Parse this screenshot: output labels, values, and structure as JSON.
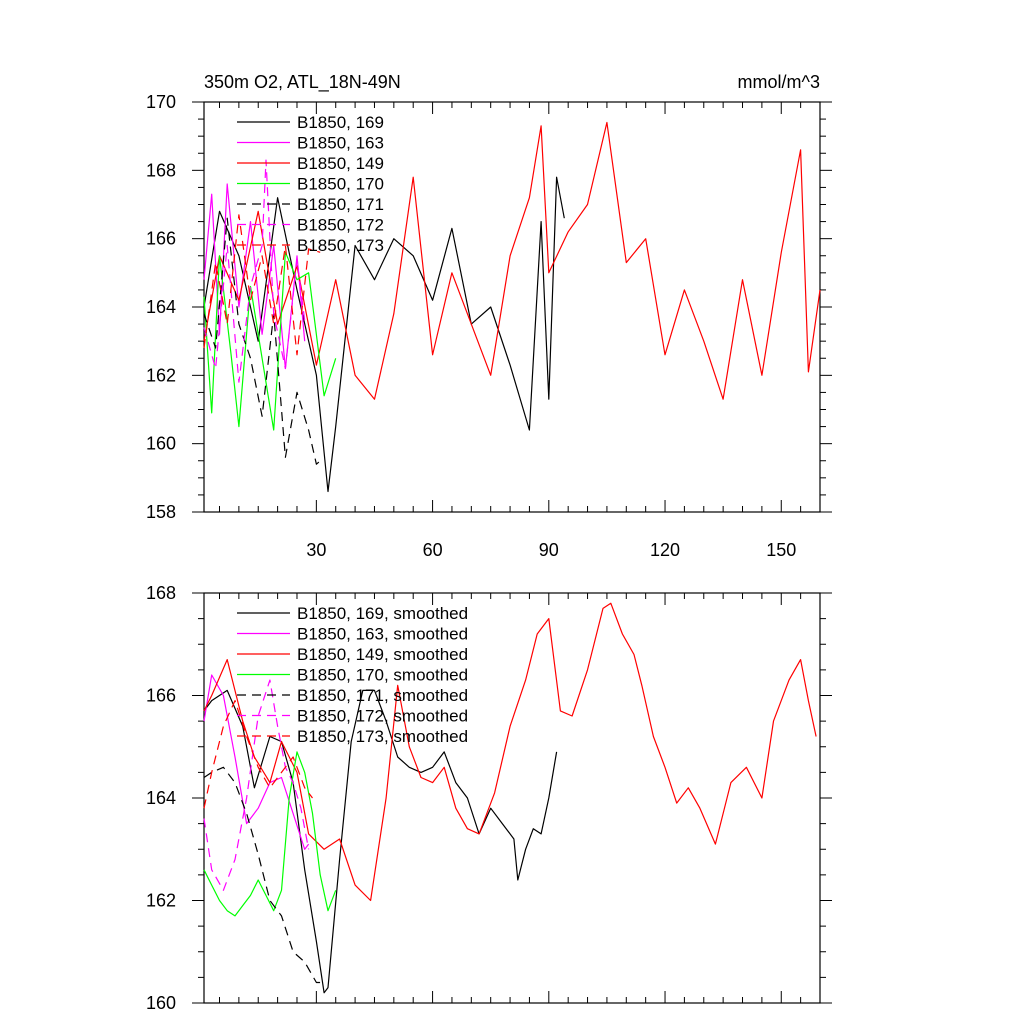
{
  "chart_data": [
    {
      "type": "line",
      "title": "350m O2, ATL_18N-49N",
      "right_title": "mmol/m^3",
      "xlabel": "",
      "ylabel": "",
      "xlim": [
        1,
        160
      ],
      "ylim": [
        158,
        170
      ],
      "xticks": [
        30,
        60,
        90,
        120,
        150
      ],
      "xtick_labels": [
        "30",
        "60",
        "90",
        "120",
        "150"
      ],
      "yticks": [
        158,
        160,
        162,
        164,
        166,
        168,
        170
      ],
      "ytick_labels": [
        "158",
        "160",
        "162",
        "164",
        "166",
        "168",
        "170"
      ],
      "grid": false,
      "legend_position": "top-left",
      "series": [
        {
          "name": "B1850, 169",
          "color": "#000000",
          "dash": "solid",
          "x": [
            1,
            5,
            10,
            15,
            20,
            25,
            30,
            33,
            35,
            40,
            45,
            50,
            55,
            60,
            65,
            70,
            75,
            80,
            85,
            88,
            90,
            92,
            94
          ],
          "y": [
            164.0,
            166.8,
            165.5,
            163.0,
            167.2,
            164.5,
            162.0,
            158.6,
            160.5,
            165.8,
            164.8,
            166.0,
            165.5,
            164.2,
            166.3,
            163.5,
            164.0,
            162.3,
            160.4,
            166.5,
            161.3,
            167.8,
            166.6
          ]
        },
        {
          "name": "B1850, 163",
          "color": "#ff00ff",
          "dash": "solid",
          "x": [
            1,
            3,
            5,
            7,
            10,
            13,
            16,
            19,
            22,
            25,
            27
          ],
          "y": [
            164.8,
            167.3,
            163.2,
            167.6,
            164.0,
            166.5,
            163.2,
            165.8,
            162.2,
            165.5,
            163.0
          ]
        },
        {
          "name": "B1850, 149",
          "color": "#ff0000",
          "dash": "solid",
          "x": [
            1,
            5,
            10,
            15,
            20,
            25,
            30,
            35,
            40,
            45,
            50,
            55,
            60,
            65,
            70,
            75,
            80,
            85,
            88,
            90,
            95,
            100,
            105,
            110,
            115,
            120,
            125,
            130,
            135,
            140,
            145,
            150,
            155,
            157,
            160
          ],
          "y": [
            163.0,
            165.5,
            164.2,
            166.8,
            163.5,
            165.2,
            162.3,
            164.8,
            162.0,
            161.3,
            163.8,
            167.8,
            162.6,
            165.0,
            163.5,
            162.0,
            165.5,
            167.2,
            169.3,
            165.0,
            166.2,
            167.0,
            169.4,
            165.3,
            166.0,
            162.6,
            164.5,
            163.0,
            161.3,
            164.8,
            162.0,
            165.6,
            168.6,
            162.1,
            164.5
          ]
        },
        {
          "name": "B1850, 170",
          "color": "#00ff00",
          "dash": "solid",
          "x": [
            1,
            3,
            5,
            8,
            10,
            13,
            16,
            19,
            22,
            25,
            28,
            32,
            35
          ],
          "y": [
            164.3,
            160.9,
            165.5,
            162.6,
            160.5,
            164.6,
            162.5,
            160.4,
            165.6,
            164.8,
            165.0,
            161.4,
            162.5
          ]
        },
        {
          "name": "B1850, 171",
          "color": "#000000",
          "dash": "dashed",
          "x": [
            1,
            4,
            7,
            10,
            13,
            16,
            19,
            22,
            25,
            28,
            30,
            31
          ],
          "y": [
            163.8,
            162.8,
            166.6,
            163.5,
            162.5,
            160.8,
            163.8,
            159.6,
            161.5,
            160.4,
            159.4,
            159.5
          ]
        },
        {
          "name": "B1850, 172",
          "color": "#ff00ff",
          "dash": "dashed",
          "x": [
            1,
            4,
            7,
            10,
            13,
            16,
            17,
            19,
            22,
            25,
            27
          ],
          "y": [
            163.4,
            162.2,
            165.8,
            161.8,
            164.6,
            165.8,
            168.3,
            163.8,
            162.2,
            165.4,
            163.6
          ]
        },
        {
          "name": "B1850, 173",
          "color": "#ff0000",
          "dash": "dashed",
          "x": [
            1,
            4,
            7,
            10,
            13,
            16,
            19,
            22,
            25,
            28,
            31
          ],
          "y": [
            162.8,
            165.3,
            163.5,
            166.7,
            164.2,
            165.5,
            163.5,
            165.8,
            162.6,
            165.7,
            165.6
          ]
        }
      ]
    },
    {
      "type": "line",
      "title": "",
      "xlabel": "",
      "ylabel": "",
      "xlim": [
        1,
        160
      ],
      "ylim": [
        160,
        168
      ],
      "yticks": [
        160,
        162,
        164,
        166,
        168
      ],
      "ytick_labels": [
        "160",
        "162",
        "164",
        "166",
        "168"
      ],
      "grid": false,
      "legend_position": "top-left",
      "series": [
        {
          "name": "B1850, 169, smoothed",
          "color": "#000000",
          "dash": "solid",
          "x": [
            1,
            3,
            7,
            11,
            14,
            18,
            21,
            24,
            27,
            30,
            32,
            33,
            36,
            39,
            42,
            45,
            48,
            51,
            54,
            57,
            60,
            63,
            66,
            69,
            72,
            75,
            78,
            81,
            82,
            84,
            86,
            88,
            90,
            92
          ],
          "y": [
            165.7,
            165.9,
            166.1,
            165.4,
            164.2,
            165.2,
            165.1,
            164.3,
            162.6,
            161.2,
            160.2,
            160.3,
            162.8,
            165.1,
            166.1,
            166.1,
            165.5,
            164.8,
            164.6,
            164.5,
            164.6,
            164.9,
            164.3,
            164.0,
            163.3,
            163.8,
            163.5,
            163.2,
            162.4,
            163.0,
            163.4,
            163.3,
            164.0,
            164.9
          ]
        },
        {
          "name": "B1850, 163, smoothed",
          "color": "#ff00ff",
          "dash": "solid",
          "x": [
            1,
            3,
            6,
            9,
            12,
            15,
            18,
            21,
            24,
            27,
            28
          ],
          "y": [
            165.5,
            166.4,
            166.0,
            164.8,
            163.5,
            163.8,
            164.3,
            164.4,
            163.7,
            163.0,
            163.1
          ]
        },
        {
          "name": "B1850, 149, smoothed",
          "color": "#ff0000",
          "dash": "solid",
          "x": [
            1,
            3,
            7,
            11,
            14,
            18,
            21,
            25,
            28,
            32,
            36,
            40,
            44,
            48,
            51,
            54,
            57,
            60,
            63,
            66,
            69,
            72,
            76,
            80,
            84,
            87,
            90,
            93,
            96,
            100,
            104,
            106,
            109,
            112,
            114,
            117,
            120,
            123,
            126,
            129,
            133,
            137,
            141,
            145,
            148,
            152,
            155,
            157,
            159
          ],
          "y": [
            165.7,
            166.0,
            166.7,
            165.5,
            164.8,
            164.3,
            165.1,
            164.5,
            163.3,
            163.0,
            163.2,
            162.3,
            162.0,
            164.0,
            166.2,
            165.0,
            164.4,
            164.3,
            164.6,
            163.8,
            163.4,
            163.3,
            164.1,
            165.4,
            166.3,
            167.2,
            167.5,
            165.7,
            165.6,
            166.5,
            167.7,
            167.8,
            167.2,
            166.8,
            166.2,
            165.2,
            164.6,
            163.9,
            164.2,
            163.8,
            163.1,
            164.3,
            164.6,
            164.0,
            165.5,
            166.3,
            166.7,
            165.9,
            165.2
          ]
        },
        {
          "name": "B1850, 170, smoothed",
          "color": "#00ff00",
          "dash": "solid",
          "x": [
            1,
            3,
            5,
            7,
            9,
            11,
            13,
            15,
            17,
            19,
            21,
            23,
            25,
            27,
            29,
            31,
            33,
            35
          ],
          "y": [
            162.6,
            162.3,
            162.0,
            161.8,
            161.7,
            161.9,
            162.1,
            162.4,
            162.1,
            161.8,
            162.2,
            164.0,
            164.9,
            164.5,
            163.7,
            162.5,
            161.8,
            162.2
          ]
        },
        {
          "name": "B1850, 171, smoothed",
          "color": "#000000",
          "dash": "dashed",
          "x": [
            1,
            3,
            6,
            9,
            12,
            15,
            18,
            21,
            24,
            27,
            30,
            32
          ],
          "y": [
            164.4,
            164.5,
            164.6,
            164.3,
            163.7,
            162.9,
            162.0,
            161.7,
            161.0,
            160.8,
            160.4,
            160.4
          ]
        },
        {
          "name": "B1850, 172, smoothed",
          "color": "#ff00ff",
          "dash": "dashed",
          "x": [
            1,
            3,
            6,
            9,
            12,
            15,
            18,
            20,
            22,
            24,
            26,
            28
          ],
          "y": [
            163.6,
            162.6,
            162.2,
            162.8,
            164.0,
            165.6,
            166.3,
            165.4,
            164.6,
            164.3,
            163.8,
            163.0
          ]
        },
        {
          "name": "B1850, 173, smoothed",
          "color": "#ff0000",
          "dash": "dashed",
          "x": [
            1,
            3,
            6,
            9,
            12,
            15,
            18,
            21,
            24,
            27,
            29
          ],
          "y": [
            163.8,
            164.5,
            165.4,
            165.9,
            165.2,
            164.6,
            164.2,
            164.5,
            164.8,
            164.2,
            164.0
          ]
        }
      ]
    }
  ]
}
